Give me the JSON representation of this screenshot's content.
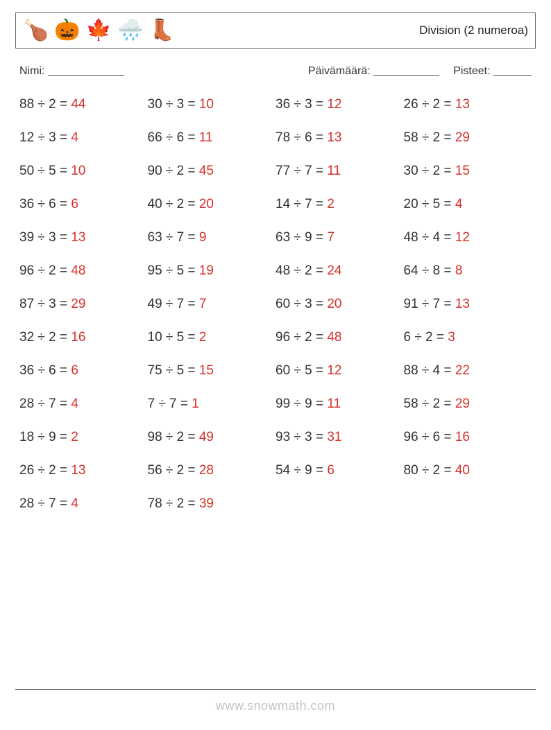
{
  "header": {
    "title": "Division (2 numeroa)",
    "icons": [
      "🍗",
      "🎃",
      "🍁",
      "🌧️",
      "👢"
    ]
  },
  "meta": {
    "name_label": "Nimi:",
    "date_label": "Päivämäärä:",
    "score_label": "Pisteet:"
  },
  "colors": {
    "answer": "#d4302b",
    "text": "#333333",
    "border": "#666666",
    "background": "#ffffff"
  },
  "watermark": "www.snowmath.com",
  "problems": [
    [
      {
        "a": 88,
        "b": 2,
        "ans": 44
      },
      {
        "a": 30,
        "b": 3,
        "ans": 10
      },
      {
        "a": 36,
        "b": 3,
        "ans": 12
      },
      {
        "a": 26,
        "b": 2,
        "ans": 13
      }
    ],
    [
      {
        "a": 12,
        "b": 3,
        "ans": 4
      },
      {
        "a": 66,
        "b": 6,
        "ans": 11
      },
      {
        "a": 78,
        "b": 6,
        "ans": 13
      },
      {
        "a": 58,
        "b": 2,
        "ans": 29
      }
    ],
    [
      {
        "a": 50,
        "b": 5,
        "ans": 10
      },
      {
        "a": 90,
        "b": 2,
        "ans": 45
      },
      {
        "a": 77,
        "b": 7,
        "ans": 11
      },
      {
        "a": 30,
        "b": 2,
        "ans": 15
      }
    ],
    [
      {
        "a": 36,
        "b": 6,
        "ans": 6
      },
      {
        "a": 40,
        "b": 2,
        "ans": 20
      },
      {
        "a": 14,
        "b": 7,
        "ans": 2
      },
      {
        "a": 20,
        "b": 5,
        "ans": 4
      }
    ],
    [
      {
        "a": 39,
        "b": 3,
        "ans": 13
      },
      {
        "a": 63,
        "b": 7,
        "ans": 9
      },
      {
        "a": 63,
        "b": 9,
        "ans": 7
      },
      {
        "a": 48,
        "b": 4,
        "ans": 12
      }
    ],
    [
      {
        "a": 96,
        "b": 2,
        "ans": 48
      },
      {
        "a": 95,
        "b": 5,
        "ans": 19
      },
      {
        "a": 48,
        "b": 2,
        "ans": 24
      },
      {
        "a": 64,
        "b": 8,
        "ans": 8
      }
    ],
    [
      {
        "a": 87,
        "b": 3,
        "ans": 29
      },
      {
        "a": 49,
        "b": 7,
        "ans": 7
      },
      {
        "a": 60,
        "b": 3,
        "ans": 20
      },
      {
        "a": 91,
        "b": 7,
        "ans": 13
      }
    ],
    [
      {
        "a": 32,
        "b": 2,
        "ans": 16
      },
      {
        "a": 10,
        "b": 5,
        "ans": 2
      },
      {
        "a": 96,
        "b": 2,
        "ans": 48
      },
      {
        "a": 6,
        "b": 2,
        "ans": 3
      }
    ],
    [
      {
        "a": 36,
        "b": 6,
        "ans": 6
      },
      {
        "a": 75,
        "b": 5,
        "ans": 15
      },
      {
        "a": 60,
        "b": 5,
        "ans": 12
      },
      {
        "a": 88,
        "b": 4,
        "ans": 22
      }
    ],
    [
      {
        "a": 28,
        "b": 7,
        "ans": 4
      },
      {
        "a": 7,
        "b": 7,
        "ans": 1
      },
      {
        "a": 99,
        "b": 9,
        "ans": 11
      },
      {
        "a": 58,
        "b": 2,
        "ans": 29
      }
    ],
    [
      {
        "a": 18,
        "b": 9,
        "ans": 2
      },
      {
        "a": 98,
        "b": 2,
        "ans": 49
      },
      {
        "a": 93,
        "b": 3,
        "ans": 31
      },
      {
        "a": 96,
        "b": 6,
        "ans": 16
      }
    ],
    [
      {
        "a": 26,
        "b": 2,
        "ans": 13
      },
      {
        "a": 56,
        "b": 2,
        "ans": 28
      },
      {
        "a": 54,
        "b": 9,
        "ans": 6
      },
      {
        "a": 80,
        "b": 2,
        "ans": 40
      }
    ],
    [
      {
        "a": 28,
        "b": 7,
        "ans": 4
      },
      {
        "a": 78,
        "b": 2,
        "ans": 39
      }
    ]
  ]
}
